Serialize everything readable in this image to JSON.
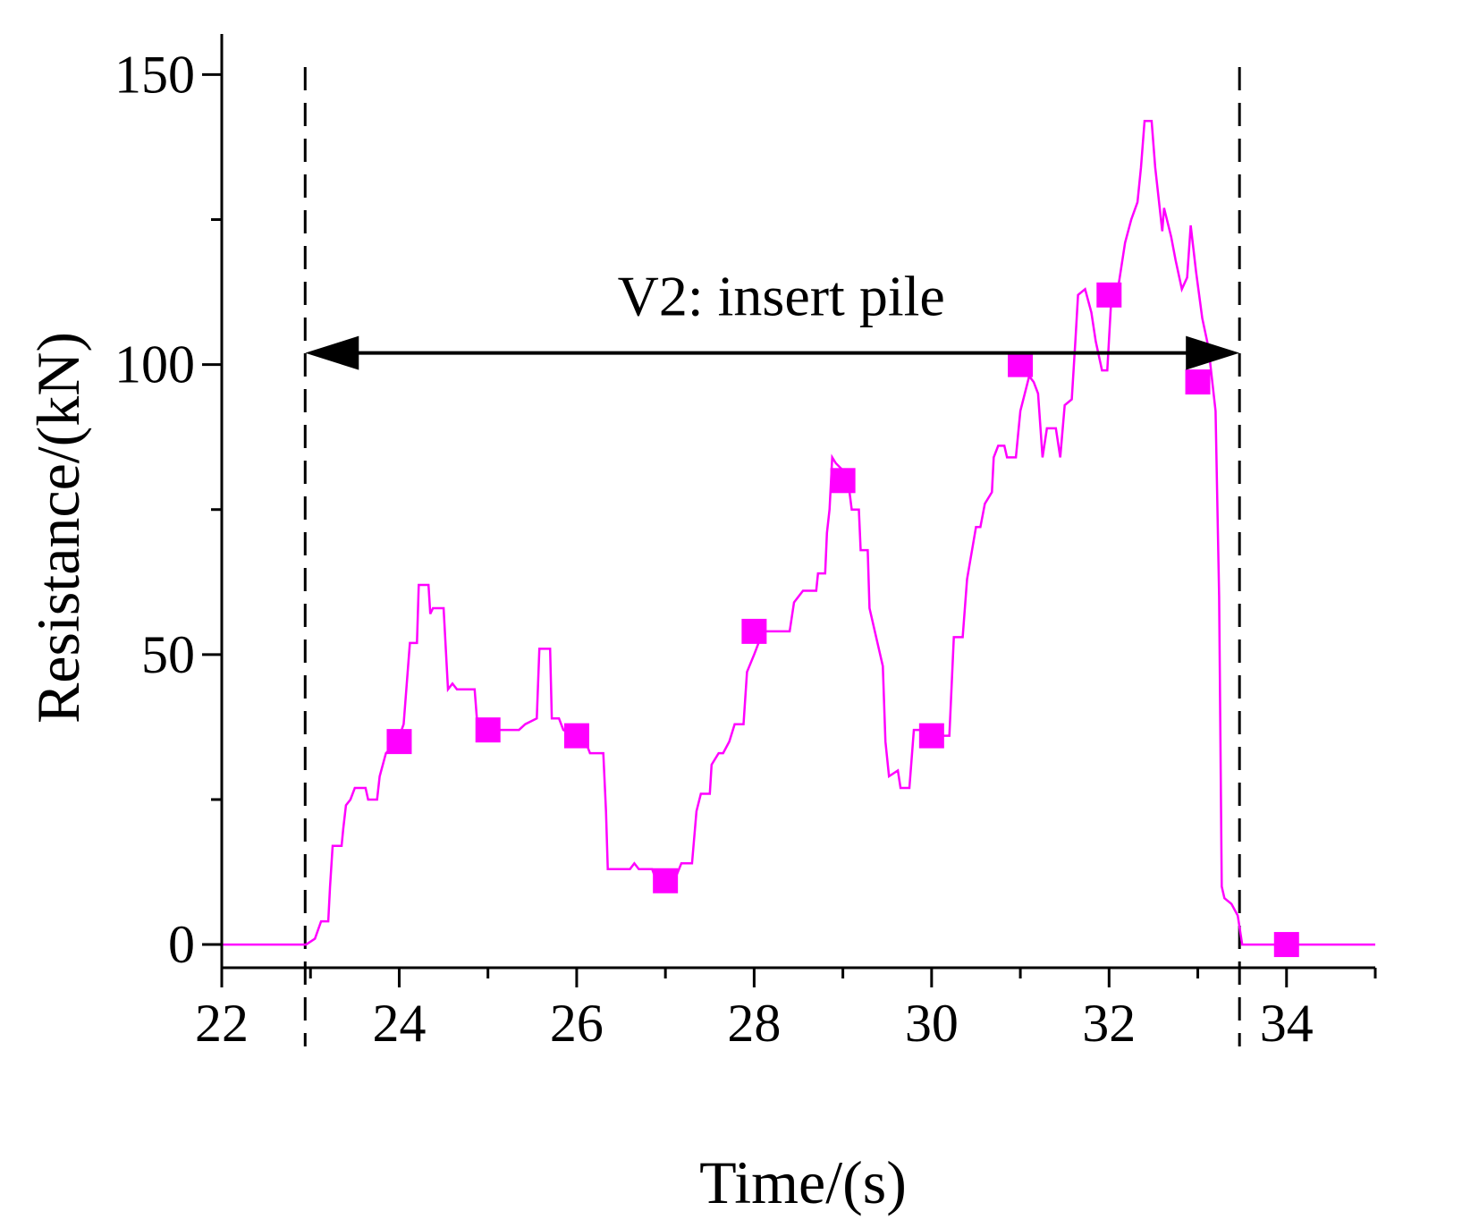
{
  "chart_data": {
    "type": "line",
    "xlabel": "Time/(s)",
    "ylabel": "Resistance/(kN)",
    "xlim": [
      22,
      35
    ],
    "ylim": [
      -4,
      157
    ],
    "x_ticks": [
      22,
      24,
      26,
      28,
      30,
      32,
      34
    ],
    "y_ticks": [
      0,
      50,
      100,
      150
    ],
    "x_minor_ticks": [
      23,
      25,
      27,
      29,
      31,
      33,
      35
    ],
    "y_minor_ticks": [
      25,
      75,
      125
    ],
    "grid": false,
    "series": [
      {
        "name": "Resistance",
        "color": "#FF00FF",
        "line": [
          [
            22.0,
            0
          ],
          [
            22.95,
            0
          ],
          [
            23.05,
            1
          ],
          [
            23.12,
            4
          ],
          [
            23.2,
            4
          ],
          [
            23.22,
            10
          ],
          [
            23.25,
            17
          ],
          [
            23.35,
            17
          ],
          [
            23.37,
            20
          ],
          [
            23.4,
            24
          ],
          [
            23.45,
            25
          ],
          [
            23.5,
            27
          ],
          [
            23.62,
            27
          ],
          [
            23.65,
            25
          ],
          [
            23.75,
            25
          ],
          [
            23.78,
            29
          ],
          [
            23.85,
            33
          ],
          [
            23.98,
            35
          ],
          [
            24.05,
            38
          ],
          [
            24.12,
            52
          ],
          [
            24.2,
            52
          ],
          [
            24.22,
            62
          ],
          [
            24.33,
            62
          ],
          [
            24.35,
            57
          ],
          [
            24.38,
            58
          ],
          [
            24.5,
            58
          ],
          [
            24.55,
            44
          ],
          [
            24.6,
            45
          ],
          [
            24.65,
            44
          ],
          [
            24.85,
            44
          ],
          [
            24.88,
            38
          ],
          [
            25.0,
            37
          ],
          [
            25.35,
            37
          ],
          [
            25.42,
            38
          ],
          [
            25.55,
            39
          ],
          [
            25.58,
            51
          ],
          [
            25.7,
            51
          ],
          [
            25.72,
            39
          ],
          [
            25.8,
            39
          ],
          [
            25.85,
            37
          ],
          [
            26.1,
            35
          ],
          [
            26.15,
            33
          ],
          [
            26.3,
            33
          ],
          [
            26.33,
            23
          ],
          [
            26.35,
            13
          ],
          [
            26.6,
            13
          ],
          [
            26.65,
            14
          ],
          [
            26.7,
            13
          ],
          [
            26.85,
            13
          ],
          [
            26.9,
            11
          ],
          [
            27.1,
            11
          ],
          [
            27.18,
            14
          ],
          [
            27.3,
            14
          ],
          [
            27.35,
            23
          ],
          [
            27.4,
            26
          ],
          [
            27.5,
            26
          ],
          [
            27.52,
            31
          ],
          [
            27.6,
            33
          ],
          [
            27.65,
            33
          ],
          [
            27.72,
            35
          ],
          [
            27.78,
            38
          ],
          [
            27.88,
            38
          ],
          [
            27.92,
            47
          ],
          [
            28.0,
            50
          ],
          [
            28.1,
            54
          ],
          [
            28.4,
            54
          ],
          [
            28.45,
            59
          ],
          [
            28.55,
            61
          ],
          [
            28.7,
            61
          ],
          [
            28.72,
            64
          ],
          [
            28.8,
            64
          ],
          [
            28.82,
            71
          ],
          [
            28.85,
            75
          ],
          [
            28.88,
            84
          ],
          [
            28.92,
            83
          ],
          [
            29.05,
            81
          ],
          [
            29.1,
            75
          ],
          [
            29.18,
            75
          ],
          [
            29.2,
            68
          ],
          [
            29.28,
            68
          ],
          [
            29.3,
            58
          ],
          [
            29.45,
            48
          ],
          [
            29.48,
            35
          ],
          [
            29.52,
            29
          ],
          [
            29.62,
            30
          ],
          [
            29.65,
            27
          ],
          [
            29.75,
            27
          ],
          [
            29.8,
            37
          ],
          [
            29.95,
            37
          ],
          [
            30.02,
            36
          ],
          [
            30.2,
            36
          ],
          [
            30.25,
            53
          ],
          [
            30.35,
            53
          ],
          [
            30.4,
            63
          ],
          [
            30.5,
            72
          ],
          [
            30.55,
            72
          ],
          [
            30.6,
            76
          ],
          [
            30.68,
            78
          ],
          [
            30.7,
            84
          ],
          [
            30.75,
            86
          ],
          [
            30.82,
            86
          ],
          [
            30.85,
            84
          ],
          [
            30.95,
            84
          ],
          [
            31.0,
            92
          ],
          [
            31.1,
            98
          ],
          [
            31.15,
            97
          ],
          [
            31.2,
            95
          ],
          [
            31.25,
            84
          ],
          [
            31.3,
            89
          ],
          [
            31.4,
            89
          ],
          [
            31.45,
            84
          ],
          [
            31.5,
            93
          ],
          [
            31.58,
            94
          ],
          [
            31.62,
            104
          ],
          [
            31.65,
            112
          ],
          [
            31.73,
            113
          ],
          [
            31.8,
            109
          ],
          [
            31.85,
            104
          ],
          [
            31.92,
            99
          ],
          [
            31.98,
            99
          ],
          [
            32.02,
            110
          ],
          [
            32.1,
            113
          ],
          [
            32.18,
            121
          ],
          [
            32.25,
            125
          ],
          [
            32.32,
            128
          ],
          [
            32.36,
            134
          ],
          [
            32.4,
            142
          ],
          [
            32.48,
            142
          ],
          [
            32.52,
            134
          ],
          [
            32.6,
            123
          ],
          [
            32.62,
            127
          ],
          [
            32.7,
            122
          ],
          [
            32.75,
            118
          ],
          [
            32.82,
            113
          ],
          [
            32.88,
            115
          ],
          [
            32.92,
            124
          ],
          [
            32.98,
            116
          ],
          [
            33.05,
            108
          ],
          [
            33.12,
            103
          ],
          [
            33.2,
            92
          ],
          [
            33.24,
            60
          ],
          [
            33.27,
            10
          ],
          [
            33.3,
            8
          ],
          [
            33.38,
            7
          ],
          [
            33.45,
            5
          ],
          [
            33.5,
            0
          ],
          [
            35.0,
            0
          ]
        ],
        "markers": [
          [
            24.0,
            35
          ],
          [
            25.0,
            37
          ],
          [
            26.0,
            36
          ],
          [
            27.0,
            11
          ],
          [
            28.0,
            54
          ],
          [
            29.0,
            80
          ],
          [
            30.0,
            36
          ],
          [
            31.0,
            100
          ],
          [
            32.0,
            112
          ],
          [
            33.0,
            97
          ],
          [
            34.0,
            0
          ]
        ]
      }
    ],
    "vertical_lines": [
      {
        "x": 22.94,
        "style": "dashed",
        "color": "#000000"
      },
      {
        "x": 33.47,
        "style": "dashed",
        "color": "#000000"
      }
    ],
    "annotations": [
      {
        "text": "V2: insert pile",
        "type": "double-arrow",
        "x_start": 22.94,
        "x_end": 33.47,
        "y": 102
      }
    ]
  }
}
